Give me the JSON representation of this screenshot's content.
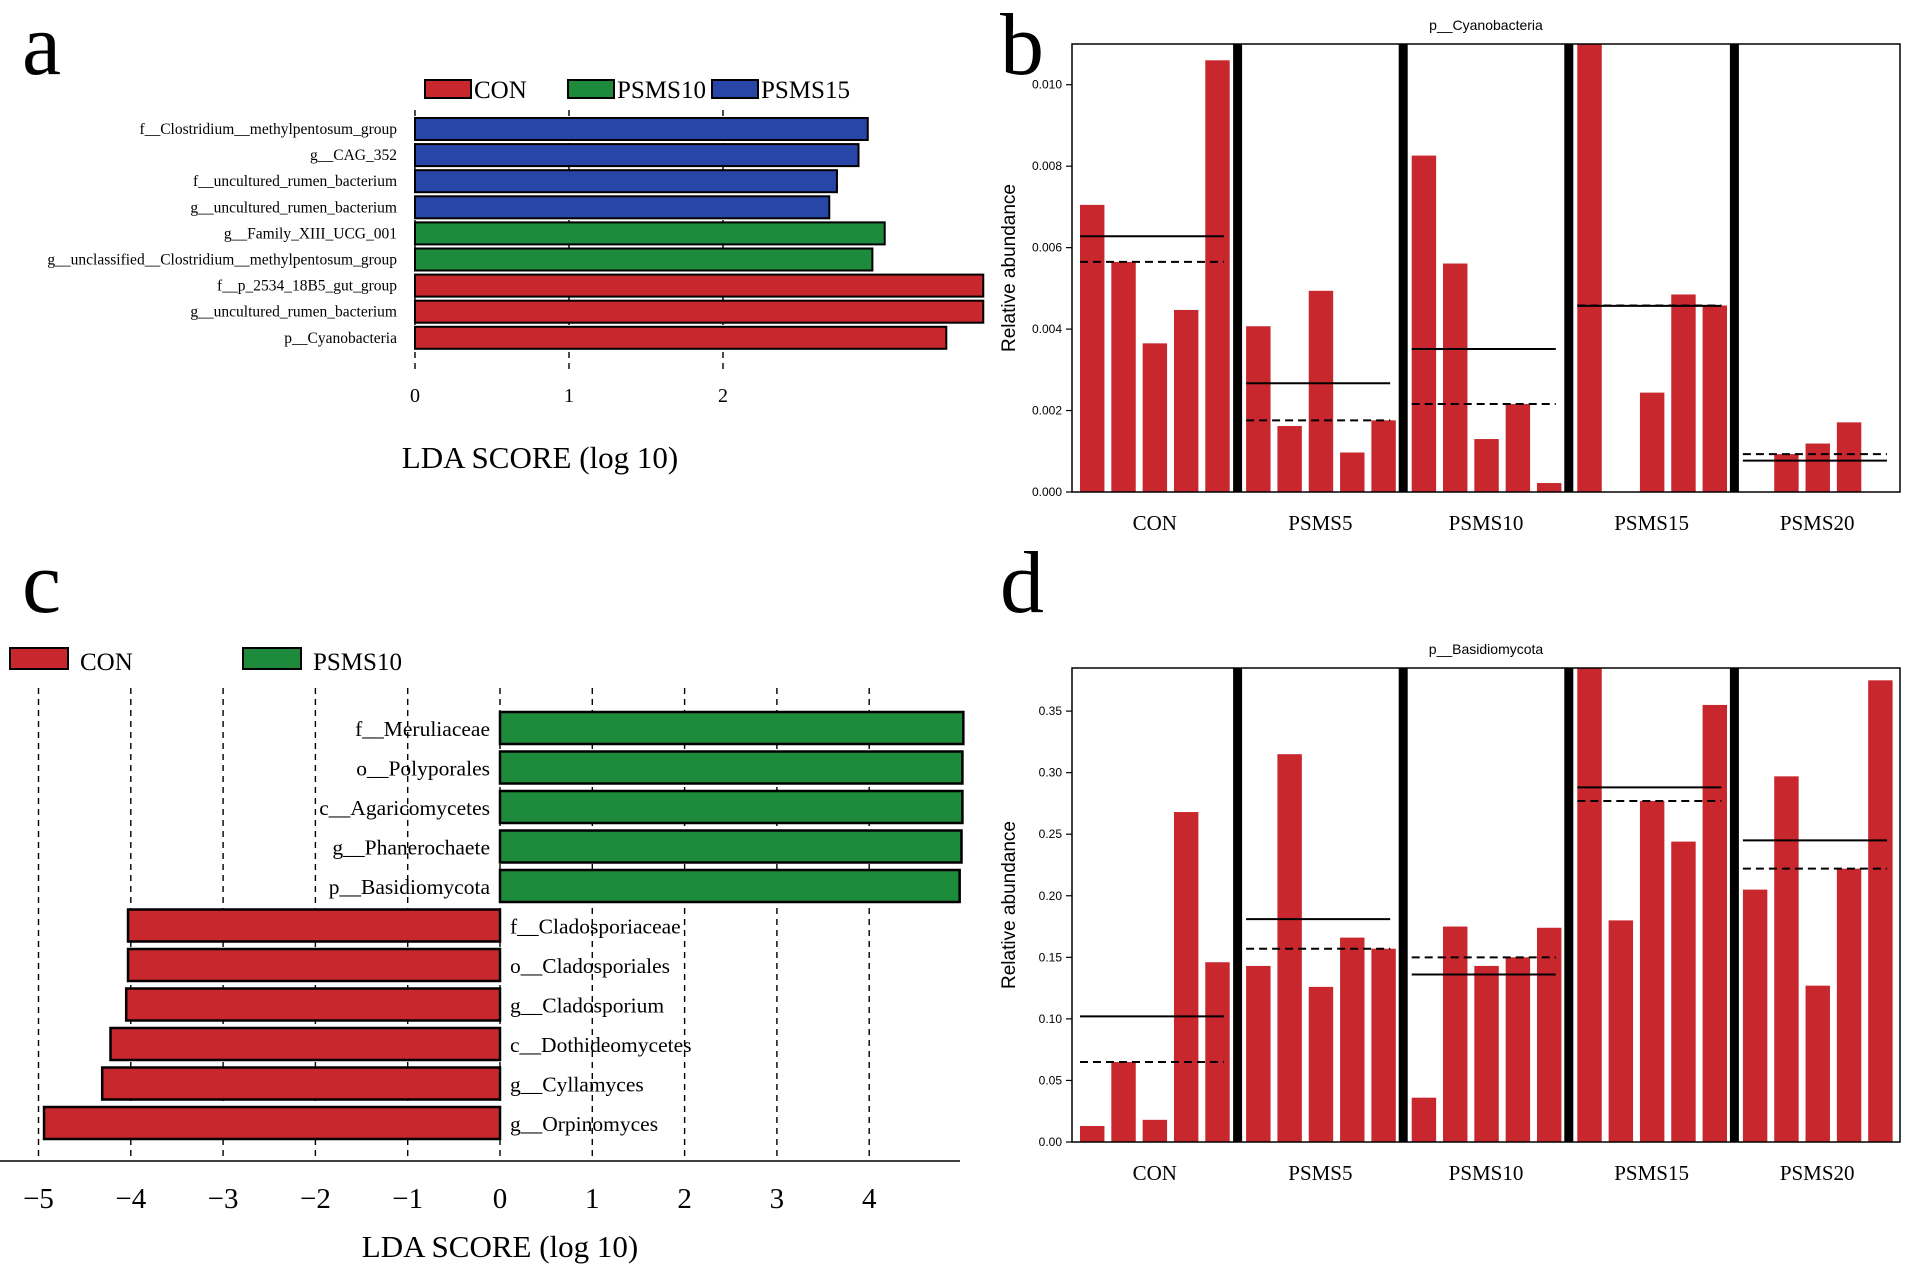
{
  "panels": {
    "a": "a",
    "b": "b",
    "c": "c",
    "d": "d"
  },
  "chart_data": [
    {
      "panel": "a",
      "type": "bar",
      "orientation": "horizontal",
      "xlabel": "LDA SCORE (log 10)",
      "xticks": [
        0,
        1,
        2
      ],
      "xlim": [
        0,
        3.7
      ],
      "legend": [
        {
          "name": "CON",
          "color": "#c8272d"
        },
        {
          "name": "PSMS10",
          "color": "#1e8a3c"
        },
        {
          "name": "PSMS15",
          "color": "#2845a8"
        }
      ],
      "bars": [
        {
          "label": "f__Clostridium__methylpentosum_group",
          "value": 2.94,
          "group": "PSMS15"
        },
        {
          "label": "g__CAG_352",
          "value": 2.88,
          "group": "PSMS15"
        },
        {
          "label": "f__uncultured_rumen_bacterium",
          "value": 2.74,
          "group": "PSMS15"
        },
        {
          "label": "g__uncultured_rumen_bacterium",
          "value": 2.69,
          "group": "PSMS15"
        },
        {
          "label": "g__Family_XIII_UCG_001",
          "value": 3.05,
          "group": "PSMS10"
        },
        {
          "label": "g__unclassified__Clostridium__methylpentosum_group",
          "value": 2.97,
          "group": "PSMS10"
        },
        {
          "label": "f__p_2534_18B5_gut_group",
          "value": 3.69,
          "group": "CON"
        },
        {
          "label": "g__uncultured_rumen_bacterium",
          "value": 3.69,
          "group": "CON"
        },
        {
          "label": "p__Cyanobacteria",
          "value": 3.45,
          "group": "CON"
        }
      ]
    },
    {
      "panel": "b",
      "type": "bar",
      "title": "p__Cyanobacteria",
      "ylabel": "Relative abundance",
      "ylim": [
        0,
        0.011
      ],
      "yticks": [
        "0.000",
        "0.002",
        "0.004",
        "0.006",
        "0.008",
        "0.010"
      ],
      "groups": [
        {
          "name": "CON",
          "values": [
            0.00705,
            0.00565,
            0.00365,
            0.00447,
            0.0106
          ],
          "mean": 0.00628,
          "median": 0.00565
        },
        {
          "name": "PSMS5",
          "values": [
            0.00407,
            0.00162,
            0.00494,
            0.00097,
            0.00176
          ],
          "mean": 0.00267,
          "median": 0.00176
        },
        {
          "name": "PSMS10",
          "values": [
            0.00826,
            0.00561,
            0.0013,
            0.00216,
            0.00022
          ],
          "mean": 0.00351,
          "median": 0.00216
        },
        {
          "name": "PSMS15",
          "values": [
            0.011,
            0.0,
            0.00244,
            0.00485,
            0.00458
          ],
          "mean": 0.00457,
          "median": 0.00458
        },
        {
          "name": "PSMS20",
          "values": [
            0.0,
            0.00093,
            0.00119,
            0.00171,
            0.0
          ],
          "mean": 0.00077,
          "median": 0.00093
        }
      ]
    },
    {
      "panel": "c",
      "type": "bar",
      "orientation": "horizontal",
      "xlabel": "LDA SCORE (log 10)",
      "xticks": [
        -5,
        -4,
        -3,
        -2,
        -1,
        0,
        1,
        2,
        3,
        4
      ],
      "xlim": [
        -5.3,
        5.1
      ],
      "legend": [
        {
          "name": "CON",
          "color": "#c8272d"
        },
        {
          "name": "PSMS10",
          "color": "#1e8a3c"
        }
      ],
      "bars": [
        {
          "label": "f__Meruliaceae",
          "value": 5.02,
          "group": "PSMS10"
        },
        {
          "label": "o__Polyporales",
          "value": 5.01,
          "group": "PSMS10"
        },
        {
          "label": "c__Agaricomycetes",
          "value": 5.01,
          "group": "PSMS10"
        },
        {
          "label": "g__Phanerochaete",
          "value": 5.0,
          "group": "PSMS10"
        },
        {
          "label": "p__Basidiomycota",
          "value": 4.98,
          "group": "PSMS10"
        },
        {
          "label": "f__Cladosporiaceae",
          "value": -4.03,
          "group": "CON"
        },
        {
          "label": "o__Cladosporiales",
          "value": -4.03,
          "group": "CON"
        },
        {
          "label": "g__Cladosporium",
          "value": -4.05,
          "group": "CON"
        },
        {
          "label": "c__Dothideomycetes",
          "value": -4.22,
          "group": "CON"
        },
        {
          "label": "g__Cyllamyces",
          "value": -4.31,
          "group": "CON"
        },
        {
          "label": "g__Orpinomyces",
          "value": -4.94,
          "group": "CON"
        }
      ]
    },
    {
      "panel": "d",
      "type": "bar",
      "title": "p__Basidiomycota",
      "ylabel": "Relative abundance",
      "ylim": [
        0,
        0.385
      ],
      "yticks": [
        "0.00",
        "0.05",
        "0.10",
        "0.15",
        "0.20",
        "0.25",
        "0.30",
        "0.35"
      ],
      "groups": [
        {
          "name": "CON",
          "values": [
            0.013,
            0.065,
            0.018,
            0.268,
            0.146
          ],
          "mean": 0.102,
          "median": 0.065
        },
        {
          "name": "PSMS5",
          "values": [
            0.143,
            0.315,
            0.126,
            0.166,
            0.157
          ],
          "mean": 0.181,
          "median": 0.157
        },
        {
          "name": "PSMS10",
          "values": [
            0.036,
            0.175,
            0.143,
            0.15,
            0.174
          ],
          "mean": 0.136,
          "median": 0.15
        },
        {
          "name": "PSMS15",
          "values": [
            0.385,
            0.18,
            0.277,
            0.244,
            0.355
          ],
          "mean": 0.288,
          "median": 0.277
        },
        {
          "name": "PSMS20",
          "values": [
            0.205,
            0.297,
            0.127,
            0.222,
            0.375
          ],
          "mean": 0.245,
          "median": 0.222
        }
      ]
    }
  ]
}
